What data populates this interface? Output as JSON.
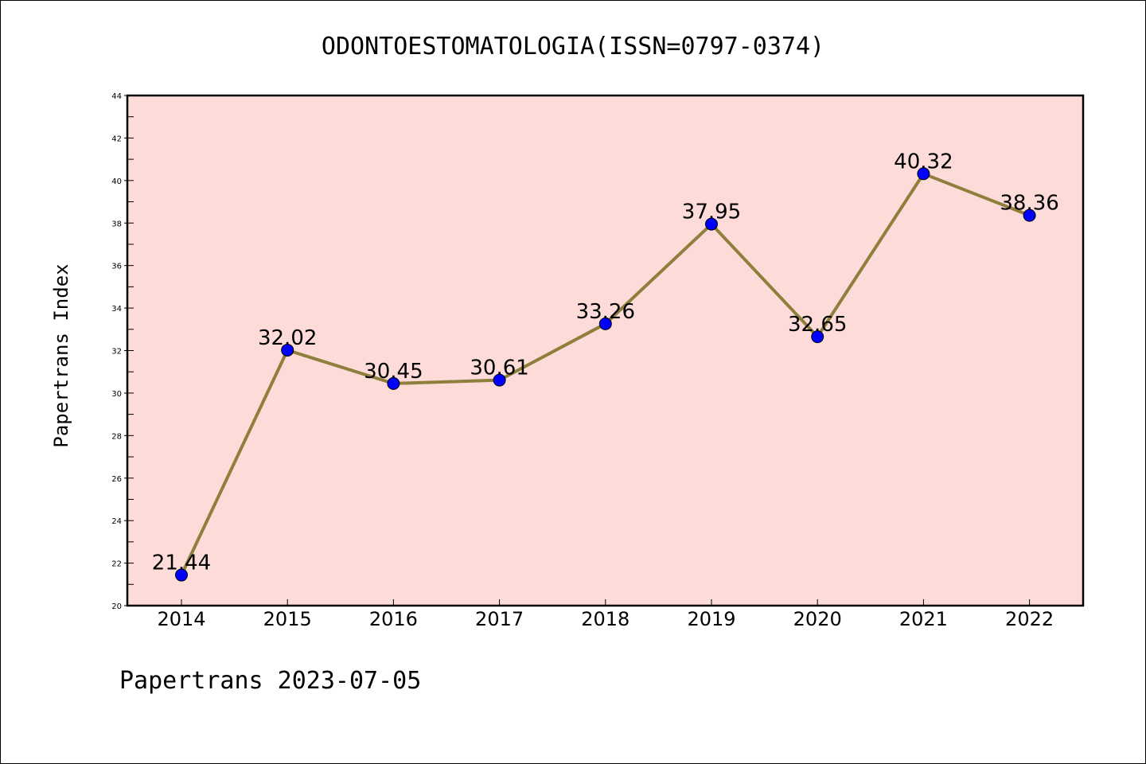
{
  "chart_data": {
    "type": "line",
    "title": "ODONTOESTOMATOLOGIA(ISSN=0797-0374)",
    "ylabel": "Papertrans Index",
    "xlabel": "",
    "categories": [
      "2014",
      "2015",
      "2016",
      "2017",
      "2018",
      "2019",
      "2020",
      "2021",
      "2022"
    ],
    "series": [
      {
        "values": [
          21.44,
          32.02,
          30.45,
          30.61,
          33.26,
          37.95,
          32.65,
          40.32,
          38.36
        ]
      }
    ],
    "data_labels": [
      "21.44",
      "32.02",
      "30.45",
      "30.61",
      "33.26",
      "37.95",
      "32.65",
      "40.32",
      "38.36"
    ],
    "ylim": [
      20,
      44
    ],
    "yticks": [
      "20",
      "22",
      "24",
      "26",
      "28",
      "30",
      "32",
      "34",
      "36",
      "38",
      "40",
      "42",
      "44"
    ],
    "grid": false,
    "colors": {
      "plot_background": "#fddbd8",
      "line": "#8f7f3c",
      "marker": "#0000ff"
    }
  },
  "footer": "Papertrans 2023-07-05"
}
